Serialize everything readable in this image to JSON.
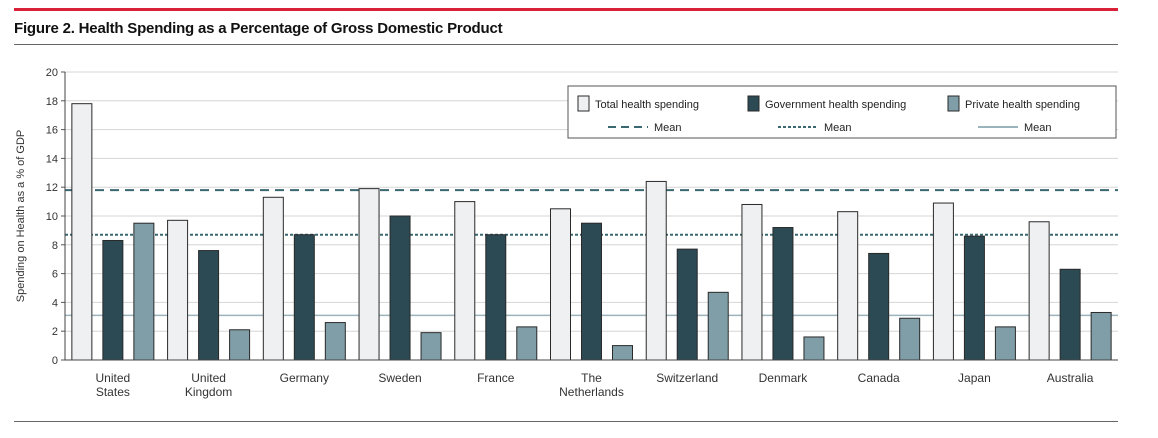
{
  "figure": {
    "title": "Figure 2. Health Spending as a Percentage of Gross Domestic Product"
  },
  "chart_data": {
    "type": "bar",
    "title": "Figure 2. Health Spending as a Percentage of Gross Domestic Product",
    "xlabel": "",
    "ylabel": "Spending on Health as a % of GDP",
    "ylim": [
      0,
      20
    ],
    "yticks": [
      0,
      2,
      4,
      6,
      8,
      10,
      12,
      14,
      16,
      18,
      20
    ],
    "grid": true,
    "legend_position": "top-right",
    "categories": [
      [
        "United",
        "States"
      ],
      [
        "United",
        "Kingdom"
      ],
      [
        "Germany"
      ],
      [
        "Sweden"
      ],
      [
        "France"
      ],
      [
        "The",
        "Netherlands"
      ],
      [
        "Switzerland"
      ],
      [
        "Denmark"
      ],
      [
        "Canada"
      ],
      [
        "Japan"
      ],
      [
        "Australia"
      ]
    ],
    "series": [
      {
        "name": "Total health spending",
        "color": "#eef0f2",
        "values": [
          17.8,
          9.7,
          11.3,
          11.9,
          11.0,
          10.5,
          12.4,
          10.8,
          10.3,
          10.9,
          9.6
        ]
      },
      {
        "name": "Government health spending",
        "color": "#2b4a54",
        "values": [
          8.3,
          7.6,
          8.7,
          10.0,
          8.7,
          9.5,
          7.7,
          9.2,
          7.4,
          8.6,
          6.3
        ]
      },
      {
        "name": "Private health spending",
        "color": "#7f9ea8",
        "values": [
          9.5,
          2.1,
          2.6,
          1.9,
          2.3,
          1.0,
          4.7,
          1.6,
          2.9,
          2.3,
          3.3
        ]
      }
    ],
    "mean_lines": [
      {
        "label": "Mean",
        "style": "dashed",
        "value": 11.8
      },
      {
        "label": "Mean",
        "style": "dotted",
        "value": 8.7
      },
      {
        "label": "Mean",
        "style": "solid",
        "value": 3.1
      }
    ]
  }
}
